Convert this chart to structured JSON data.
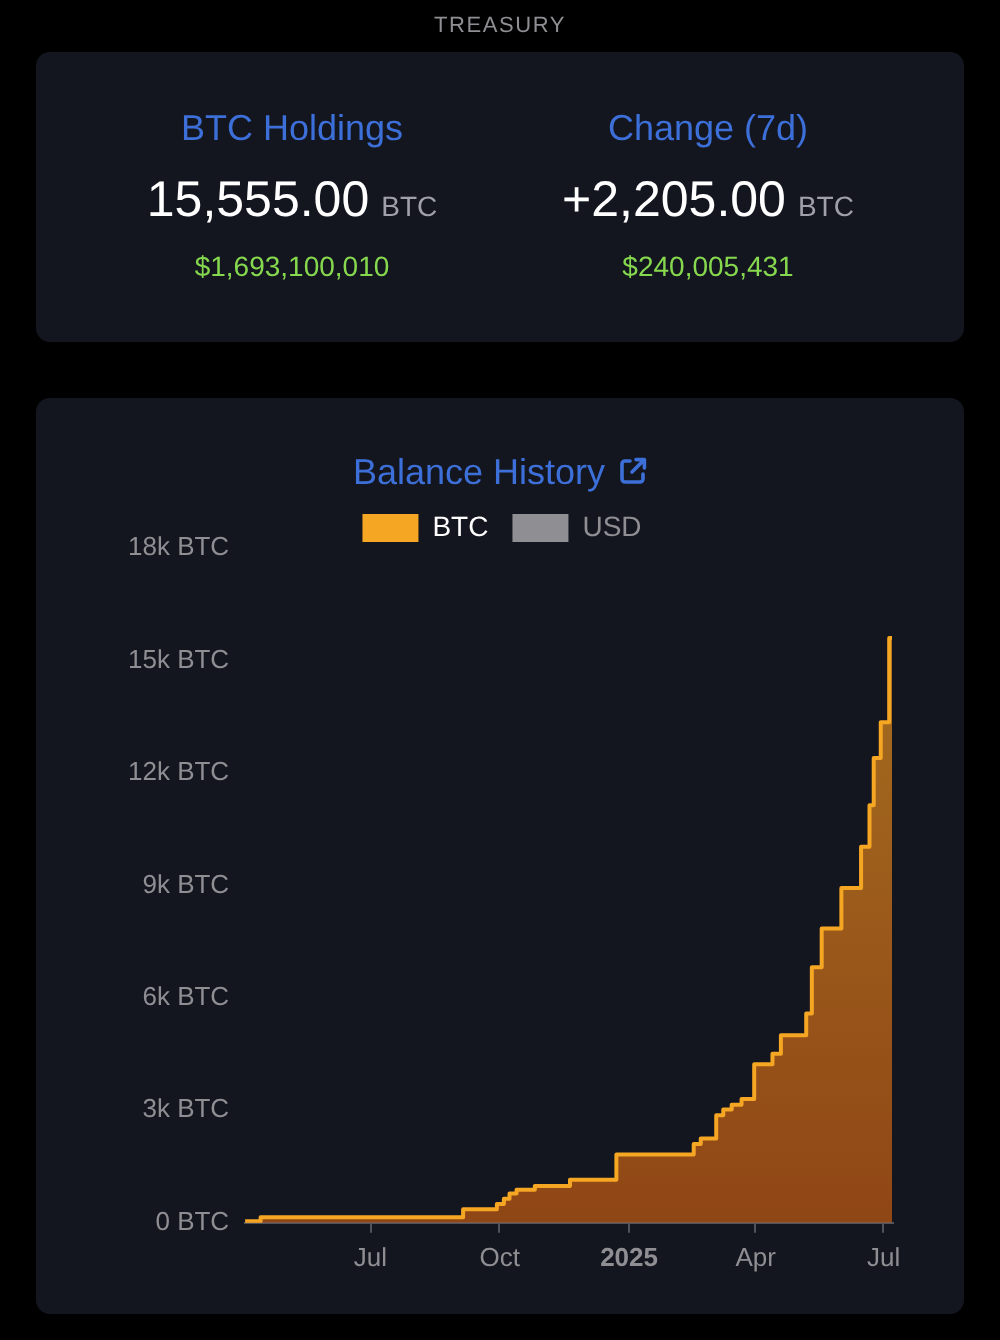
{
  "chart_data": [
    {
      "type": "other",
      "title": "TREASURY",
      "annotations": [
        "BTC Holdings",
        "15,555.00 BTC",
        "$1,693,100,010",
        "Change (7d)",
        "+2,205.00 BTC",
        "$240,005,431"
      ]
    },
    {
      "type": "area",
      "title": "Balance History",
      "legend": "top",
      "x": [
        "2024-04-03",
        "2024-04-14",
        "2024-04-14",
        "2024-09-05",
        "2024-09-05",
        "2024-09-29",
        "2024-09-29",
        "2024-10-04",
        "2024-10-04",
        "2024-10-08",
        "2024-10-08",
        "2024-10-13",
        "2024-10-13",
        "2024-10-26",
        "2024-10-26",
        "2024-11-20",
        "2024-11-20",
        "2024-12-23",
        "2024-12-23",
        "2025-02-16",
        "2025-02-16",
        "2025-02-21",
        "2025-02-21",
        "2025-03-04",
        "2025-03-04",
        "2025-03-09",
        "2025-03-09",
        "2025-03-15",
        "2025-03-15",
        "2025-03-22",
        "2025-03-22",
        "2025-03-31",
        "2025-03-31",
        "2025-04-13",
        "2025-04-13",
        "2025-04-19",
        "2025-04-19",
        "2025-05-07",
        "2025-05-07",
        "2025-05-11",
        "2025-05-11",
        "2025-05-18",
        "2025-05-18",
        "2025-06-01",
        "2025-06-01",
        "2025-06-15",
        "2025-06-15",
        "2025-06-21",
        "2025-06-21",
        "2025-06-24",
        "2025-06-24",
        "2025-06-29",
        "2025-06-29",
        "2025-07-05",
        "2025-07-05",
        "2025-07-07"
      ],
      "series": [
        {
          "name": "BTC",
          "color": "#f5a623",
          "values": [
            40,
            40,
            150,
            150,
            360,
            360,
            500,
            500,
            640,
            640,
            780,
            780,
            880,
            880,
            980,
            980,
            1150,
            1150,
            1820,
            1820,
            2100,
            2100,
            2250,
            2250,
            2870,
            2870,
            3020,
            3020,
            3150,
            3150,
            3300,
            3300,
            4230,
            4230,
            4510,
            4510,
            5000,
            5000,
            5580,
            5580,
            6820,
            6820,
            7850,
            7850,
            8930,
            8930,
            10030,
            10030,
            11140,
            11140,
            12400,
            12400,
            13350,
            13350,
            15600,
            15600
          ]
        },
        {
          "name": "USD",
          "color": "#8e8e93",
          "values": [
            null,
            null,
            null,
            null,
            null,
            null,
            null,
            null,
            null,
            null,
            null,
            null,
            null,
            null,
            null,
            null,
            null,
            null,
            null,
            null,
            null,
            null,
            null,
            null,
            null,
            null,
            null,
            null,
            null,
            null,
            null,
            null,
            null,
            null,
            null,
            null,
            null,
            null,
            null,
            null,
            null,
            null,
            null,
            null,
            null,
            null,
            null,
            null,
            null,
            null,
            null,
            null,
            null,
            null,
            null,
            null
          ]
        }
      ],
      "xlim": [
        "2024-04-03",
        "2025-07-07"
      ],
      "xticks": [
        {
          "value": "2024-07-01",
          "label": "Jul"
        },
        {
          "value": "2024-10-01",
          "label": "Oct"
        },
        {
          "value": "2025-01-01",
          "label": "2025"
        },
        {
          "value": "2025-04-01",
          "label": "Apr"
        },
        {
          "value": "2025-07-01",
          "label": "Jul"
        }
      ],
      "ylim": [
        0,
        18000
      ],
      "yticks": [
        {
          "value": 0,
          "label": "0 BTC"
        },
        {
          "value": 3000,
          "label": "3k BTC"
        },
        {
          "value": 6000,
          "label": "6k BTC"
        },
        {
          "value": 9000,
          "label": "9k BTC"
        },
        {
          "value": 12000,
          "label": "12k BTC"
        },
        {
          "value": 15000,
          "label": "15k BTC"
        },
        {
          "value": 18000,
          "label": "18k BTC"
        }
      ]
    }
  ]
}
